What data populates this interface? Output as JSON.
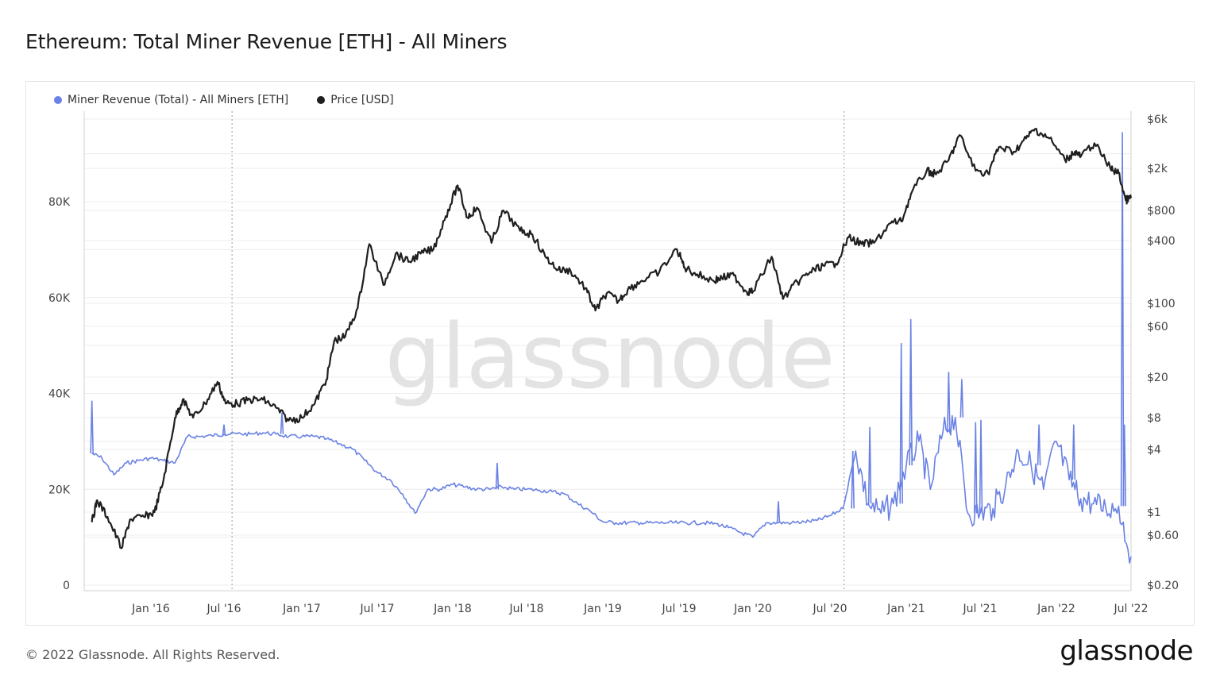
{
  "title": "Ethereum: Total Miner Revenue [ETH] - All Miners",
  "footer": "© 2022 Glassnode. All Rights Reserved.",
  "brand": "glassnode",
  "watermark": "glassnode",
  "colors": {
    "revenue": "#6a82e4",
    "price": "#1f1f1f",
    "grid": "#ececec",
    "axis": "#d0d0d0",
    "vline": "#9a9a9a"
  },
  "chart_data": {
    "type": "line",
    "title": "Ethereum: Total Miner Revenue [ETH] - All Miners",
    "x_ticks": [
      "Jan '16",
      "Jul '16",
      "Jan '17",
      "Jul '17",
      "Jan '18",
      "Jul '18",
      "Jan '19",
      "Jul '19",
      "Jan '20",
      "Jul '20",
      "Jan '21",
      "Jul '21",
      "Jan '22",
      "Jul '22"
    ],
    "x_range": [
      "2015-08-07",
      "2022-07-01"
    ],
    "left_axis": {
      "ticks": [
        "0",
        "20K",
        "40K",
        "60K",
        "80K"
      ],
      "range": [
        0,
        100000
      ]
    },
    "right_axis": {
      "scale": "log",
      "ticks": [
        "$0.20",
        "$0.60",
        "$1",
        "$4",
        "$8",
        "$20",
        "$60",
        "$100",
        "$400",
        "$800",
        "$2k",
        "$6k"
      ],
      "tick_values": [
        0.2,
        0.6,
        1,
        4,
        8,
        20,
        60,
        100,
        400,
        800,
        2000,
        6000
      ]
    },
    "vertical_markers": [
      "2016-07-20",
      "2020-08-04"
    ],
    "grid": true,
    "legend_position": "top-left",
    "series": [
      {
        "name": "Miner Revenue (Total) - All Miners [ETH]",
        "axis": "left",
        "points": [
          [
            "2015-08-07",
            27500
          ],
          [
            "2015-09-01",
            26500
          ],
          [
            "2015-10-01",
            23000
          ],
          [
            "2015-11-01",
            25500
          ],
          [
            "2015-12-01",
            26000
          ],
          [
            "2016-01-01",
            26500
          ],
          [
            "2016-02-01",
            26000
          ],
          [
            "2016-03-01",
            25500
          ],
          [
            "2016-04-01",
            31000
          ],
          [
            "2016-05-01",
            31000
          ],
          [
            "2016-06-01",
            31200
          ],
          [
            "2016-07-01",
            31500
          ],
          [
            "2016-08-01",
            31600
          ],
          [
            "2016-09-01",
            31500
          ],
          [
            "2016-10-01",
            31800
          ],
          [
            "2016-11-01",
            31500
          ],
          [
            "2016-12-01",
            31000
          ],
          [
            "2017-01-01",
            31000
          ],
          [
            "2017-02-01",
            31000
          ],
          [
            "2017-03-01",
            30500
          ],
          [
            "2017-04-01",
            29500
          ],
          [
            "2017-05-01",
            28500
          ],
          [
            "2017-06-01",
            26000
          ],
          [
            "2017-07-01",
            23500
          ],
          [
            "2017-08-01",
            22000
          ],
          [
            "2017-09-01",
            19000
          ],
          [
            "2017-10-01",
            15000
          ],
          [
            "2017-11-01",
            20000
          ],
          [
            "2017-12-01",
            20000
          ],
          [
            "2018-01-01",
            21000
          ],
          [
            "2018-02-01",
            20500
          ],
          [
            "2018-03-01",
            20000
          ],
          [
            "2018-04-01",
            20000
          ],
          [
            "2018-05-01",
            20500
          ],
          [
            "2018-06-01",
            20000
          ],
          [
            "2018-07-01",
            20000
          ],
          [
            "2018-08-01",
            19800
          ],
          [
            "2018-09-01",
            19500
          ],
          [
            "2018-10-01",
            19000
          ],
          [
            "2018-11-01",
            17000
          ],
          [
            "2018-12-01",
            15500
          ],
          [
            "2019-01-01",
            13200
          ],
          [
            "2019-02-01",
            13000
          ],
          [
            "2019-03-01",
            13000
          ],
          [
            "2019-04-01",
            13000
          ],
          [
            "2019-05-01",
            13000
          ],
          [
            "2019-06-01",
            13000
          ],
          [
            "2019-07-01",
            13000
          ],
          [
            "2019-08-01",
            13000
          ],
          [
            "2019-09-01",
            13000
          ],
          [
            "2019-10-01",
            12800
          ],
          [
            "2019-11-01",
            12000
          ],
          [
            "2019-12-01",
            11000
          ],
          [
            "2020-01-01",
            10000
          ],
          [
            "2020-02-01",
            13000
          ],
          [
            "2020-03-01",
            13000
          ],
          [
            "2020-04-01",
            13000
          ],
          [
            "2020-05-01",
            13200
          ],
          [
            "2020-06-01",
            13500
          ],
          [
            "2020-07-01",
            14500
          ],
          [
            "2020-08-01",
            16000
          ],
          [
            "2020-09-01",
            28000
          ],
          [
            "2020-10-01",
            17000
          ],
          [
            "2020-11-01",
            15000
          ],
          [
            "2020-12-01",
            17000
          ],
          [
            "2021-01-01",
            25000
          ],
          [
            "2021-02-01",
            30000
          ],
          [
            "2021-03-01",
            20000
          ],
          [
            "2021-04-01",
            32000
          ],
          [
            "2021-05-01",
            35000
          ],
          [
            "2021-06-01",
            15000
          ],
          [
            "2021-07-01",
            15000
          ],
          [
            "2021-08-01",
            16000
          ],
          [
            "2021-09-01",
            21000
          ],
          [
            "2021-10-01",
            28000
          ],
          [
            "2021-11-01",
            25000
          ],
          [
            "2021-12-01",
            20000
          ],
          [
            "2022-01-01",
            30000
          ],
          [
            "2022-02-01",
            22000
          ],
          [
            "2022-03-01",
            18000
          ],
          [
            "2022-04-01",
            17000
          ],
          [
            "2022-05-01",
            16000
          ],
          [
            "2022-06-01",
            16500
          ],
          [
            "2022-07-01",
            6000
          ]
        ],
        "spikes": [
          [
            "2015-08-07",
            38500
          ],
          [
            "2016-07-01",
            33500
          ],
          [
            "2016-11-15",
            36000
          ],
          [
            "2018-04-20",
            25500
          ],
          [
            "2020-03-01",
            17500
          ],
          [
            "2020-08-25",
            28000
          ],
          [
            "2020-10-05",
            33000
          ],
          [
            "2020-12-20",
            50500
          ],
          [
            "2021-01-12",
            55500
          ],
          [
            "2021-04-15",
            44500
          ],
          [
            "2021-05-17",
            43000
          ],
          [
            "2021-06-20",
            34000
          ],
          [
            "2021-07-03",
            34500
          ],
          [
            "2021-11-20",
            33500
          ],
          [
            "2022-02-12",
            33500
          ],
          [
            "2022-06-10",
            94500
          ],
          [
            "2022-06-15",
            33500
          ]
        ]
      },
      {
        "name": "Price [USD]",
        "axis": "right",
        "points": [
          [
            "2015-08-07",
            0.8
          ],
          [
            "2015-08-20",
            1.3
          ],
          [
            "2015-09-15",
            0.9
          ],
          [
            "2015-10-20",
            0.45
          ],
          [
            "2015-11-10",
            0.85
          ],
          [
            "2015-12-15",
            0.9
          ],
          [
            "2016-01-10",
            1.0
          ],
          [
            "2016-02-01",
            2.0
          ],
          [
            "2016-03-01",
            8
          ],
          [
            "2016-03-20",
            12
          ],
          [
            "2016-04-15",
            8
          ],
          [
            "2016-05-15",
            11
          ],
          [
            "2016-06-15",
            18
          ],
          [
            "2016-07-05",
            11
          ],
          [
            "2016-08-01",
            11
          ],
          [
            "2016-09-01",
            12
          ],
          [
            "2016-10-01",
            12
          ],
          [
            "2016-11-01",
            10
          ],
          [
            "2016-12-01",
            7.5
          ],
          [
            "2017-01-01",
            8
          ],
          [
            "2017-02-01",
            11
          ],
          [
            "2017-03-01",
            19
          ],
          [
            "2017-03-20",
            44
          ],
          [
            "2017-04-15",
            48
          ],
          [
            "2017-05-15",
            90
          ],
          [
            "2017-06-12",
            370
          ],
          [
            "2017-07-16",
            150
          ],
          [
            "2017-08-15",
            300
          ],
          [
            "2017-09-15",
            250
          ],
          [
            "2017-10-15",
            300
          ],
          [
            "2017-11-15",
            330
          ],
          [
            "2017-12-15",
            700
          ],
          [
            "2018-01-13",
            1380
          ],
          [
            "2018-02-06",
            680
          ],
          [
            "2018-03-01",
            850
          ],
          [
            "2018-04-06",
            380
          ],
          [
            "2018-05-05",
            800
          ],
          [
            "2018-06-15",
            500
          ],
          [
            "2018-07-15",
            460
          ],
          [
            "2018-08-15",
            280
          ],
          [
            "2018-09-15",
            210
          ],
          [
            "2018-10-15",
            205
          ],
          [
            "2018-11-20",
            140
          ],
          [
            "2018-12-14",
            85
          ],
          [
            "2019-01-10",
            125
          ],
          [
            "2019-02-07",
            105
          ],
          [
            "2019-03-01",
            135
          ],
          [
            "2019-04-03",
            165
          ],
          [
            "2019-05-15",
            200
          ],
          [
            "2019-06-26",
            330
          ],
          [
            "2019-07-15",
            220
          ],
          [
            "2019-08-15",
            190
          ],
          [
            "2019-09-24",
            165
          ],
          [
            "2019-10-15",
            175
          ],
          [
            "2019-11-15",
            185
          ],
          [
            "2019-12-15",
            130
          ],
          [
            "2020-01-01",
            130
          ],
          [
            "2020-02-14",
            280
          ],
          [
            "2020-03-12",
            110
          ],
          [
            "2020-04-15",
            160
          ],
          [
            "2020-05-15",
            200
          ],
          [
            "2020-06-15",
            230
          ],
          [
            "2020-07-15",
            240
          ],
          [
            "2020-08-15",
            430
          ],
          [
            "2020-09-15",
            370
          ],
          [
            "2020-10-15",
            380
          ],
          [
            "2020-11-25",
            600
          ],
          [
            "2020-12-20",
            620
          ],
          [
            "2021-01-15",
            1200
          ],
          [
            "2021-02-20",
            1900
          ],
          [
            "2021-03-15",
            1750
          ],
          [
            "2021-04-15",
            2400
          ],
          [
            "2021-05-12",
            4200
          ],
          [
            "2021-06-20",
            1900
          ],
          [
            "2021-07-20",
            1800
          ],
          [
            "2021-08-15",
            3200
          ],
          [
            "2021-09-20",
            2900
          ],
          [
            "2021-10-20",
            3900
          ],
          [
            "2021-11-10",
            4800
          ],
          [
            "2021-12-15",
            3900
          ],
          [
            "2022-01-22",
            2400
          ],
          [
            "2022-02-15",
            2900
          ],
          [
            "2022-03-01",
            2600
          ],
          [
            "2022-04-03",
            3500
          ],
          [
            "2022-05-12",
            2000
          ],
          [
            "2022-06-01",
            1800
          ],
          [
            "2022-06-18",
            1000
          ],
          [
            "2022-07-01",
            1050
          ]
        ]
      }
    ]
  }
}
